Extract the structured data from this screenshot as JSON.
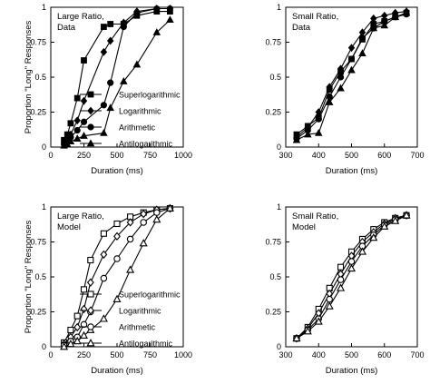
{
  "chart_data": [
    {
      "type": "line",
      "title": "Large Ratio, Data",
      "xlabel": "Duration (ms)",
      "ylabel": "Proportion \"Long\" Responses",
      "xlim": [
        0,
        1000
      ],
      "ylim": [
        0,
        1
      ],
      "xticks": [
        "0",
        "250",
        "500",
        "750",
        "1000"
      ],
      "yticks": [
        "0",
        "0.25",
        "0.5",
        "0.75",
        "1"
      ],
      "x": [
        100,
        125,
        150,
        200,
        250,
        400,
        450,
        550,
        650,
        800,
        900
      ],
      "series": [
        {
          "name": "Superlogarithmic",
          "marker": "filled-square",
          "values": [
            0.05,
            0.09,
            0.17,
            0.35,
            0.62,
            0.86,
            0.88,
            0.88,
            0.94,
            0.97,
            0.97
          ]
        },
        {
          "name": "Logarithmic",
          "marker": "filled-diamond",
          "values": [
            0.04,
            0.06,
            0.09,
            0.19,
            0.33,
            0.68,
            0.76,
            0.89,
            0.97,
            0.99,
            0.99
          ]
        },
        {
          "name": "Arithmetic",
          "marker": "filled-circle",
          "values": [
            0.02,
            0.05,
            0.07,
            0.12,
            0.18,
            0.3,
            0.46,
            0.86,
            0.96,
            0.99,
            0.99
          ]
        },
        {
          "name": "Antilogarithmic",
          "marker": "filled-triangle",
          "values": [
            0.01,
            0.02,
            0.04,
            0.06,
            0.08,
            0.1,
            0.28,
            0.47,
            0.59,
            0.82,
            0.91
          ]
        }
      ],
      "legend": {
        "position": "bottom-right"
      }
    },
    {
      "type": "line",
      "title": "Small Ratio, Data",
      "xlabel": "Duration (ms)",
      "ylabel": "",
      "xlim": [
        300,
        700
      ],
      "ylim": [
        0,
        1
      ],
      "xticks": [
        "300",
        "400",
        "500",
        "600",
        "700"
      ],
      "yticks": [
        "0",
        "0.25",
        "0.5",
        "0.75",
        "1"
      ],
      "x": [
        333,
        367,
        400,
        433,
        467,
        500,
        533,
        567,
        600,
        633,
        667
      ],
      "series": [
        {
          "marker": "filled-square",
          "values": [
            0.09,
            0.15,
            0.21,
            0.41,
            0.54,
            0.63,
            0.77,
            0.88,
            0.9,
            0.93,
            0.96
          ]
        },
        {
          "marker": "filled-diamond",
          "values": [
            0.07,
            0.14,
            0.25,
            0.43,
            0.56,
            0.71,
            0.82,
            0.92,
            0.94,
            0.96,
            0.97
          ]
        },
        {
          "marker": "filled-circle",
          "values": [
            0.06,
            0.12,
            0.2,
            0.36,
            0.5,
            0.63,
            0.78,
            0.85,
            0.9,
            0.93,
            0.95
          ]
        },
        {
          "marker": "filled-triangle",
          "values": [
            0.05,
            0.09,
            0.1,
            0.32,
            0.42,
            0.55,
            0.67,
            0.85,
            0.87,
            0.93,
            0.96
          ]
        }
      ]
    },
    {
      "type": "line",
      "title": "Large Ratio, Model",
      "xlabel": "Duration (ms)",
      "ylabel": "Proportion \"Long\" Responses",
      "xlim": [
        0,
        1000
      ],
      "ylim": [
        0,
        1
      ],
      "xticks": [
        "0",
        "250",
        "500",
        "750",
        "1000"
      ],
      "yticks": [
        "0",
        "0.25",
        "0.5",
        "0.75",
        "1"
      ],
      "x": [
        100,
        150,
        200,
        250,
        300,
        400,
        500,
        600,
        700,
        800,
        900
      ],
      "series": [
        {
          "name": "Superlogarithmic",
          "marker": "open-square",
          "values": [
            0.03,
            0.12,
            0.22,
            0.41,
            0.62,
            0.81,
            0.88,
            0.93,
            0.96,
            0.98,
            0.99
          ]
        },
        {
          "name": "Logarithmic",
          "marker": "open-diamond",
          "values": [
            0.02,
            0.07,
            0.14,
            0.27,
            0.46,
            0.66,
            0.79,
            0.89,
            0.95,
            0.98,
            0.99
          ]
        },
        {
          "name": "Arithmetic",
          "marker": "open-circle",
          "values": [
            0.01,
            0.04,
            0.07,
            0.16,
            0.25,
            0.49,
            0.63,
            0.77,
            0.89,
            0.96,
            0.99
          ]
        },
        {
          "name": "Antilogarithmic",
          "marker": "open-triangle",
          "values": [
            0.0,
            0.02,
            0.04,
            0.08,
            0.12,
            0.2,
            0.34,
            0.55,
            0.74,
            0.91,
            0.99
          ]
        }
      ],
      "legend": {
        "position": "bottom-right"
      }
    },
    {
      "type": "line",
      "title": "Small Ratio, Model",
      "xlabel": "Duration (ms)",
      "ylabel": "",
      "xlim": [
        300,
        700
      ],
      "ylim": [
        0,
        1
      ],
      "xticks": [
        "300",
        "400",
        "500",
        "600",
        "700"
      ],
      "yticks": [
        "0",
        "0.25",
        "0.5",
        "0.75",
        "1"
      ],
      "x": [
        333,
        367,
        400,
        433,
        467,
        500,
        533,
        567,
        600,
        633,
        667
      ],
      "series": [
        {
          "marker": "open-square",
          "values": [
            0.06,
            0.14,
            0.27,
            0.42,
            0.57,
            0.68,
            0.77,
            0.84,
            0.89,
            0.92,
            0.94
          ]
        },
        {
          "marker": "open-diamond",
          "values": [
            0.06,
            0.13,
            0.24,
            0.38,
            0.52,
            0.65,
            0.75,
            0.82,
            0.88,
            0.92,
            0.94
          ]
        },
        {
          "marker": "open-circle",
          "values": [
            0.06,
            0.12,
            0.2,
            0.34,
            0.48,
            0.61,
            0.72,
            0.8,
            0.87,
            0.91,
            0.94
          ]
        },
        {
          "marker": "open-triangle",
          "values": [
            0.06,
            0.11,
            0.18,
            0.29,
            0.42,
            0.56,
            0.68,
            0.78,
            0.86,
            0.9,
            0.94
          ]
        }
      ]
    }
  ]
}
